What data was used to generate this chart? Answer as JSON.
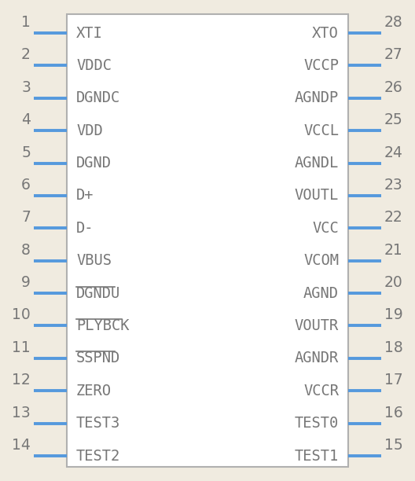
{
  "bg_color": "#f0ebe0",
  "box_facecolor": "#ffffff",
  "box_edgecolor": "#b0b0b0",
  "pin_line_color": "#5599dd",
  "text_color": "#777777",
  "num_color": "#777777",
  "left_pins": [
    {
      "num": 1,
      "name": "XTI",
      "overline": false
    },
    {
      "num": 2,
      "name": "VDDC",
      "overline": false
    },
    {
      "num": 3,
      "name": "DGNDC",
      "overline": false
    },
    {
      "num": 4,
      "name": "VDD",
      "overline": false
    },
    {
      "num": 5,
      "name": "DGND",
      "overline": false
    },
    {
      "num": 6,
      "name": "D+",
      "overline": false
    },
    {
      "num": 7,
      "name": "D-",
      "overline": false
    },
    {
      "num": 8,
      "name": "VBUS",
      "overline": false
    },
    {
      "num": 9,
      "name": "DGNDU",
      "overline": true
    },
    {
      "num": 10,
      "name": "PLYBCK",
      "overline": true
    },
    {
      "num": 11,
      "name": "SSPND",
      "overline": true
    },
    {
      "num": 12,
      "name": "ZERO",
      "overline": false
    },
    {
      "num": 13,
      "name": "TEST3",
      "overline": false
    },
    {
      "num": 14,
      "name": "TEST2",
      "overline": false
    }
  ],
  "right_pins": [
    {
      "num": 28,
      "name": "XTO",
      "overline": false
    },
    {
      "num": 27,
      "name": "VCCP",
      "overline": false
    },
    {
      "num": 26,
      "name": "AGNDP",
      "overline": false
    },
    {
      "num": 25,
      "name": "VCCL",
      "overline": false
    },
    {
      "num": 24,
      "name": "AGNDL",
      "overline": false
    },
    {
      "num": 23,
      "name": "VOUTL",
      "overline": false
    },
    {
      "num": 22,
      "name": "VCC",
      "overline": false
    },
    {
      "num": 21,
      "name": "VCOM",
      "overline": false
    },
    {
      "num": 20,
      "name": "AGND",
      "overline": false
    },
    {
      "num": 19,
      "name": "VOUTR",
      "overline": false
    },
    {
      "num": 18,
      "name": "AGNDR",
      "overline": false
    },
    {
      "num": 17,
      "name": "VCCR",
      "overline": false
    },
    {
      "num": 16,
      "name": "TEST0",
      "overline": false
    },
    {
      "num": 15,
      "name": "TEST1",
      "overline": false
    }
  ],
  "fig_w": 5.28,
  "fig_h": 6.12,
  "dpi": 100
}
